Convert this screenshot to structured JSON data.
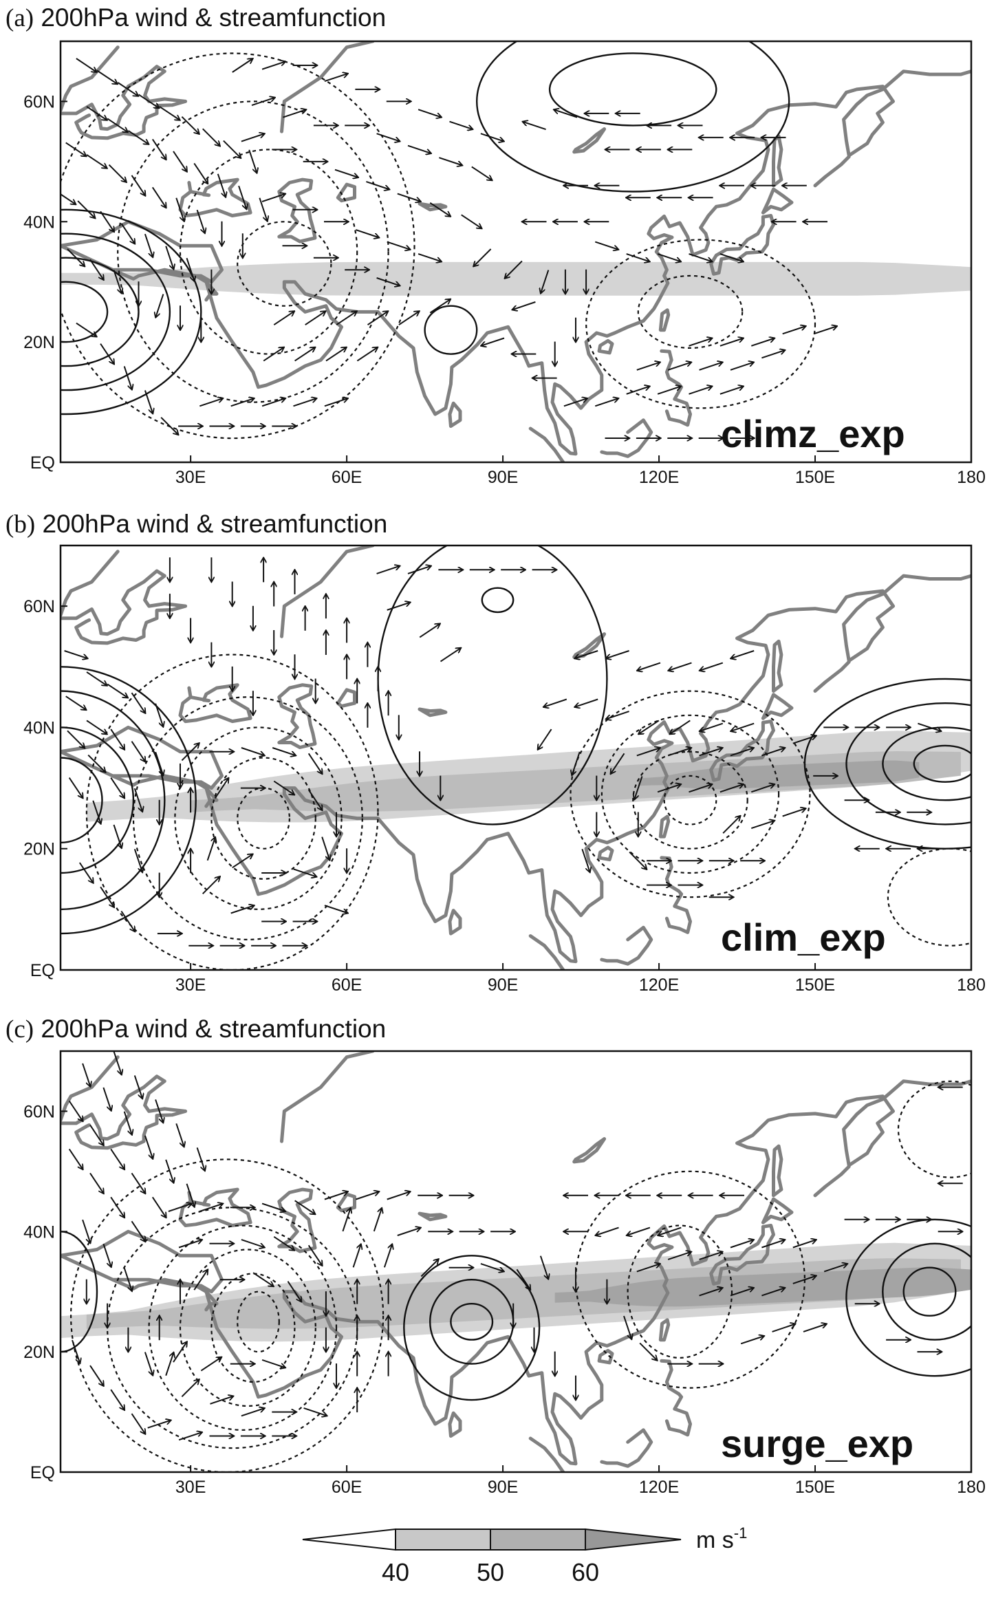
{
  "figure": {
    "panels": [
      {
        "id": "a",
        "label": "(a)",
        "title": "200hPa wind & streamfunction",
        "experiment": "climz_exp",
        "jet_shading": [
          {
            "level": "40",
            "lon": [
              5,
              180
            ],
            "lat_center": [
              30.5,
              30.5
            ],
            "half_width": 2.8
          }
        ],
        "streamfunction_positive": [
          {
            "lon": 6,
            "lat": 25,
            "rx": 8,
            "ry": 5
          },
          {
            "lon": 6,
            "lat": 25,
            "rx": 14,
            "ry": 9
          },
          {
            "lon": 6,
            "lat": 25,
            "rx": 20,
            "ry": 13
          },
          {
            "lon": 6,
            "lat": 25,
            "rx": 26,
            "ry": 17
          },
          {
            "lon": 80,
            "lat": 22,
            "rx": 5,
            "ry": 4
          },
          {
            "lon": 115,
            "lat": 62,
            "rx": 16,
            "ry": 6
          },
          {
            "lon": 115,
            "lat": 60,
            "rx": 30,
            "ry": 15
          }
        ],
        "streamfunction_negative": [
          {
            "lon": 48,
            "lat": 33,
            "rx": 9,
            "ry": 7
          },
          {
            "lon": 45,
            "lat": 35,
            "rx": 17,
            "ry": 17
          },
          {
            "lon": 42,
            "lat": 35,
            "rx": 26,
            "ry": 25
          },
          {
            "lon": 38,
            "lat": 36,
            "rx": 35,
            "ry": 32
          },
          {
            "lon": 126,
            "lat": 25,
            "rx": 10,
            "ry": 6
          },
          {
            "lon": 128,
            "lat": 23,
            "rx": 22,
            "ry": 14
          }
        ]
      },
      {
        "id": "b",
        "label": "(b)",
        "title": "200hPa wind & streamfunction",
        "experiment": "clim_exp",
        "jet_shading": [
          {
            "level": "40",
            "lon": [
              10,
              180
            ],
            "lat_center": [
              26,
              36
            ],
            "half_width": 4.5
          },
          {
            "level": "50",
            "lon": [
              30,
              178
            ],
            "lat_center": [
              27,
              34
            ],
            "half_width": 2.8
          },
          {
            "level": "60",
            "lon": [
              116,
              170
            ],
            "lat_center": [
              31,
              33
            ],
            "half_width": 1.8
          }
        ],
        "streamfunction_positive": [
          {
            "lon": 5,
            "lat": 28,
            "rx": 8,
            "ry": 7
          },
          {
            "lon": 5,
            "lat": 28,
            "rx": 14,
            "ry": 12
          },
          {
            "lon": 5,
            "lat": 28,
            "rx": 20,
            "ry": 18
          },
          {
            "lon": 5,
            "lat": 28,
            "rx": 26,
            "ry": 22
          },
          {
            "lon": 89,
            "lat": 61,
            "rx": 3,
            "ry": 2
          },
          {
            "lon": 88,
            "lat": 48,
            "rx": 22,
            "ry": 24
          },
          {
            "lon": 175,
            "lat": 34,
            "rx": 6,
            "ry": 3
          },
          {
            "lon": 175,
            "lat": 34,
            "rx": 12,
            "ry": 6
          },
          {
            "lon": 175,
            "lat": 34,
            "rx": 19,
            "ry": 10
          },
          {
            "lon": 175,
            "lat": 34,
            "rx": 27,
            "ry": 14
          }
        ],
        "streamfunction_negative": [
          {
            "lon": 44,
            "lat": 25,
            "rx": 5,
            "ry": 5
          },
          {
            "lon": 44,
            "lat": 25,
            "rx": 10,
            "ry": 10
          },
          {
            "lon": 43,
            "lat": 25,
            "rx": 16,
            "ry": 15
          },
          {
            "lon": 41,
            "lat": 25,
            "rx": 22,
            "ry": 20
          },
          {
            "lon": 38,
            "lat": 26,
            "rx": 28,
            "ry": 26
          },
          {
            "lon": 126,
            "lat": 28,
            "rx": 5,
            "ry": 4
          },
          {
            "lon": 126,
            "lat": 28,
            "rx": 11,
            "ry": 8
          },
          {
            "lon": 126,
            "lat": 29,
            "rx": 17,
            "ry": 13
          },
          {
            "lon": 126,
            "lat": 29,
            "rx": 23,
            "ry": 17
          },
          {
            "lon": 176,
            "lat": 12,
            "rx": 12,
            "ry": 8
          }
        ]
      },
      {
        "id": "c",
        "label": "(c)",
        "title": "200hPa wind & streamfunction",
        "experiment": "surge_exp",
        "jet_shading": [
          {
            "level": "40",
            "lon": [
              3,
              180
            ],
            "lat_center": [
              24,
              34
            ],
            "half_width": 5.2
          },
          {
            "level": "50",
            "lon": [
              10,
              178
            ],
            "lat_center": [
              25,
              33
            ],
            "half_width": 3.4
          },
          {
            "level": "60",
            "lon": [
              100,
              180
            ],
            "lat_center": [
              29,
              32
            ],
            "half_width": 2.4
          }
        ],
        "streamfunction_positive": [
          {
            "lon": 5,
            "lat": 30,
            "rx": 7,
            "ry": 10
          },
          {
            "lon": 84,
            "lat": 25,
            "rx": 4,
            "ry": 3
          },
          {
            "lon": 84,
            "lat": 25,
            "rx": 8,
            "ry": 7
          },
          {
            "lon": 84,
            "lat": 24,
            "rx": 13,
            "ry": 12
          },
          {
            "lon": 172,
            "lat": 30,
            "rx": 5,
            "ry": 4
          },
          {
            "lon": 173,
            "lat": 30,
            "rx": 10,
            "ry": 8
          },
          {
            "lon": 173,
            "lat": 29,
            "rx": 17,
            "ry": 13
          }
        ],
        "streamfunction_negative": [
          {
            "lon": 43,
            "lat": 25,
            "rx": 4,
            "ry": 5
          },
          {
            "lon": 42,
            "lat": 24,
            "rx": 8,
            "ry": 9
          },
          {
            "lon": 41,
            "lat": 24,
            "rx": 13,
            "ry": 13
          },
          {
            "lon": 40,
            "lat": 24,
            "rx": 18,
            "ry": 17
          },
          {
            "lon": 38,
            "lat": 24,
            "rx": 24,
            "ry": 20
          },
          {
            "lon": 37,
            "lat": 26,
            "rx": 30,
            "ry": 26
          },
          {
            "lon": 124,
            "lat": 30,
            "rx": 10,
            "ry": 11
          },
          {
            "lon": 126,
            "lat": 32,
            "rx": 22,
            "ry": 18
          },
          {
            "lon": 176,
            "lat": 57,
            "rx": 10,
            "ry": 8
          }
        ]
      }
    ],
    "map": {
      "lon_range": [
        5,
        180
      ],
      "lat_range": [
        0,
        70
      ],
      "x_ticks": [
        {
          "value": 30,
          "label": "30E"
        },
        {
          "value": 60,
          "label": "60E"
        },
        {
          "value": 90,
          "label": "90E"
        },
        {
          "value": 120,
          "label": "120E"
        },
        {
          "value": 150,
          "label": "150E"
        },
        {
          "value": 180,
          "label": "180"
        }
      ],
      "y_ticks": [
        {
          "value": 0,
          "label": "EQ"
        },
        {
          "value": 20,
          "label": "20N"
        },
        {
          "value": 40,
          "label": "40N"
        },
        {
          "value": 60,
          "label": "60N"
        }
      ]
    },
    "colorbar": {
      "ticks": [
        "40",
        "50",
        "60"
      ],
      "unit_base": "m s",
      "unit_sup": "-1",
      "colors": [
        "#ffffff",
        "#c8c8c8",
        "#b0b0b0",
        "#989898"
      ]
    },
    "colors": {
      "coastline": "#808080",
      "contour": "#111111",
      "jet_40": "#d4d4d4",
      "jet_50": "#bcbcbc",
      "jet_60": "#a4a4a4"
    }
  }
}
